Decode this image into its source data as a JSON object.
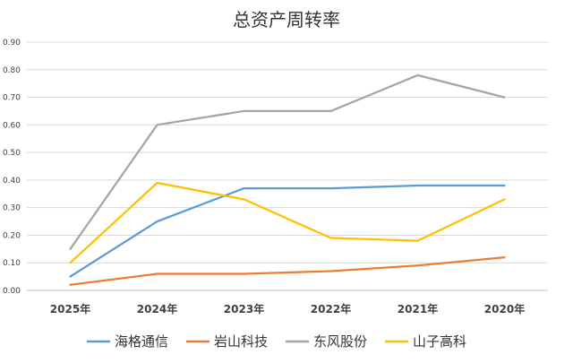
{
  "chart_data": {
    "type": "line",
    "title": "总资产周转率",
    "categories": [
      "2025年",
      "2024年",
      "2023年",
      "2022年",
      "2021年",
      "2020年"
    ],
    "ylim": [
      0,
      0.9
    ],
    "yticks": [
      "0.00",
      "0.10",
      "0.20",
      "0.30",
      "0.40",
      "0.50",
      "0.60",
      "0.70",
      "0.80",
      "0.90"
    ],
    "grid": true,
    "legend": "bottom",
    "series": [
      {
        "name": "海格通信",
        "color": "#5b9bd5",
        "values": [
          0.05,
          0.25,
          0.37,
          0.37,
          0.38,
          0.38
        ]
      },
      {
        "name": "岩山科技",
        "color": "#ed7d31",
        "values": [
          0.02,
          0.06,
          0.06,
          0.07,
          0.09,
          0.12
        ]
      },
      {
        "name": "东风股份",
        "color": "#a5a5a5",
        "values": [
          0.15,
          0.6,
          0.65,
          0.65,
          0.78,
          0.7
        ]
      },
      {
        "name": "山子高科",
        "color": "#ffc000",
        "values": [
          0.1,
          0.39,
          0.33,
          0.19,
          0.18,
          0.33
        ]
      }
    ]
  }
}
